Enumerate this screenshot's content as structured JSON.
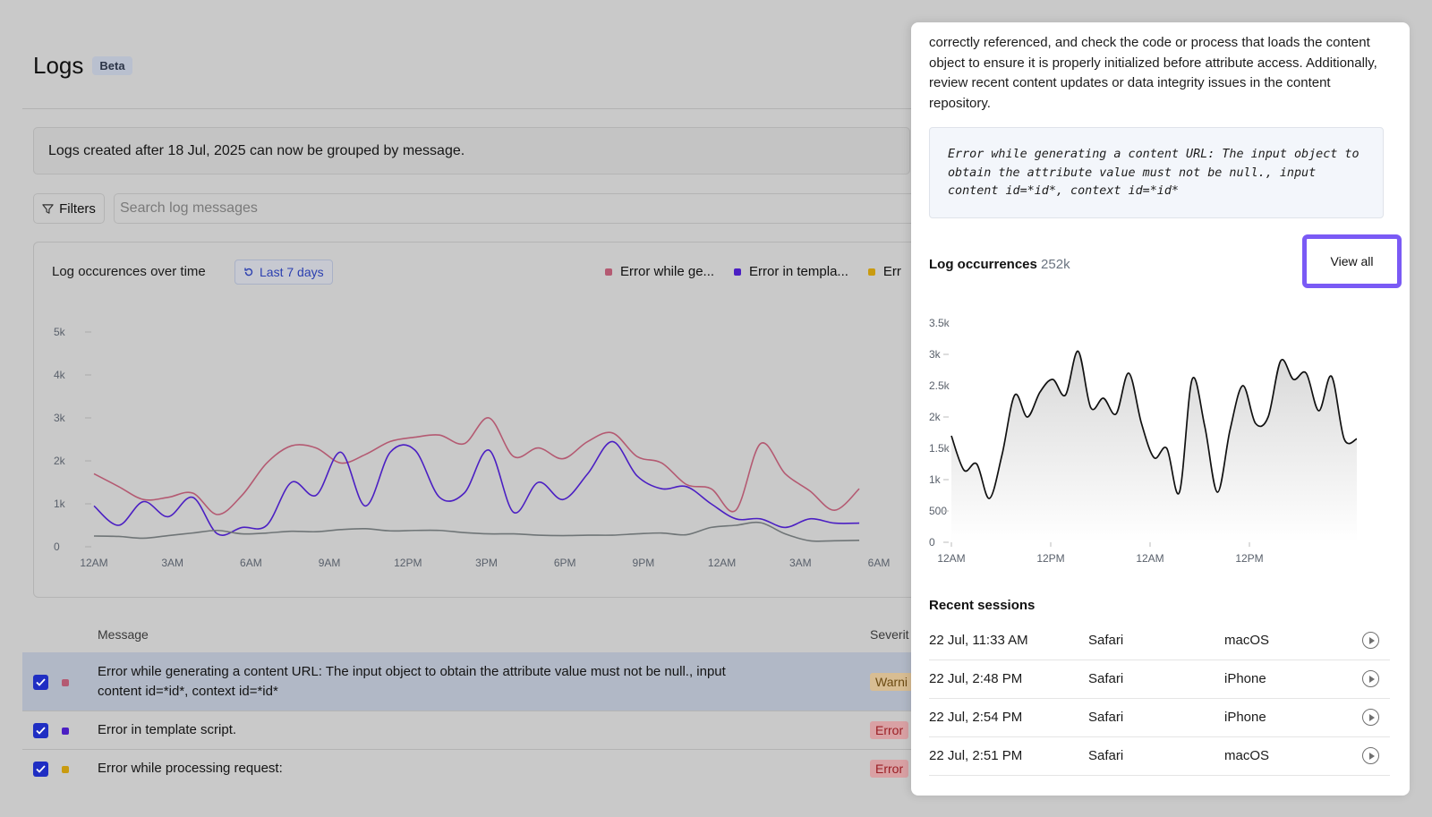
{
  "page": {
    "title": "Logs",
    "badge": "Beta",
    "notice": "Logs created after 18 Jul, 2025 can now be grouped by message."
  },
  "toolbar": {
    "filters_label": "Filters",
    "search_placeholder": "Search log messages"
  },
  "main_chart": {
    "title": "Log occurences over time",
    "range_label": "Last 7 days",
    "legend": [
      {
        "label": "Error while ge...",
        "color": "#b45a72"
      },
      {
        "label": "Error in templa...",
        "color": "#4b1fc3"
      },
      {
        "label": "Err",
        "color": "#c99b10"
      }
    ]
  },
  "table": {
    "header_message": "Message",
    "header_severity": "Severit",
    "rows": [
      {
        "message": "Error while generating a content URL: The input object to obtain the attribute value must not be null., input content id=*id*, context id=*id*",
        "severity": "Warni",
        "color": "#b45a72",
        "checked": true
      },
      {
        "message": "Error in template script.",
        "severity": "Error",
        "color": "#4b1fc3",
        "checked": true
      },
      {
        "message": "Error while processing request:",
        "severity": "Error",
        "color": "#c99b10",
        "checked": true
      }
    ]
  },
  "panel": {
    "description": "correctly referenced, and check the code or process that loads the content object to ensure it is properly initialized before attribute access. Additionally, review recent content updates or data integrity issues in the content repository.",
    "code": "Error while generating a content URL: The input object to obtain the attribute value must not be null., input content id=*id*, context id=*id*",
    "occurrences_title": "Log occurrences",
    "occurrences_count": "252k",
    "view_all_label": "View all",
    "sessions_title": "Recent sessions",
    "sessions": [
      {
        "time": "22 Jul, 11:33 AM",
        "browser": "Safari",
        "os": "macOS"
      },
      {
        "time": "22 Jul, 2:48 PM",
        "browser": "Safari",
        "os": "iPhone"
      },
      {
        "time": "22 Jul, 2:54 PM",
        "browser": "Safari",
        "os": "iPhone"
      },
      {
        "time": "22 Jul, 2:51 PM",
        "browser": "Safari",
        "os": "macOS"
      }
    ]
  },
  "chart_data": [
    {
      "type": "line",
      "title": "Log occurences over time",
      "y_ticks": [
        "0",
        "1k",
        "2k",
        "3k",
        "4k",
        "5k"
      ],
      "x_ticks": [
        "12AM",
        "3AM",
        "6AM",
        "9AM",
        "12PM",
        "3PM",
        "6PM",
        "9PM",
        "12AM",
        "3AM",
        "6AM"
      ],
      "ylim": [
        0,
        5000
      ],
      "series": [
        {
          "name": "Error while ge...",
          "color": "#b45a72",
          "values": [
            1700,
            1400,
            1100,
            1150,
            1250,
            750,
            1200,
            1950,
            2350,
            2300,
            1950,
            2150,
            2450,
            2550,
            2600,
            2400,
            3000,
            2100,
            2300,
            2050,
            2450,
            2650,
            2100,
            1950,
            1450,
            1350,
            850,
            2400,
            1700,
            1300,
            850,
            1350
          ]
        },
        {
          "name": "Error in templa...",
          "color": "#4b1fc3",
          "values": [
            950,
            500,
            1050,
            700,
            1150,
            300,
            450,
            500,
            1500,
            1200,
            2200,
            950,
            2200,
            2250,
            1150,
            1250,
            2250,
            800,
            1500,
            1100,
            1700,
            2450,
            1650,
            1350,
            1400,
            1000,
            650,
            650,
            450,
            650,
            550,
            550
          ]
        },
        {
          "name": "Err",
          "color": "#c99b10",
          "values": [
            250,
            240,
            200,
            260,
            320,
            380,
            300,
            320,
            360,
            350,
            400,
            420,
            370,
            380,
            380,
            330,
            300,
            300,
            270,
            260,
            270,
            270,
            300,
            320,
            280,
            450,
            500,
            560,
            300,
            140,
            140,
            150
          ]
        }
      ]
    },
    {
      "type": "area",
      "title": "Log occurrences",
      "y_ticks": [
        "0",
        "500",
        "1k",
        "1.5k",
        "2k",
        "2.5k",
        "3k",
        "3.5k"
      ],
      "x_ticks": [
        "12AM",
        "12PM",
        "12AM",
        "12PM"
      ],
      "ylim": [
        0,
        3500
      ],
      "values": [
        1700,
        1150,
        1250,
        700,
        1400,
        2350,
        2000,
        2400,
        2600,
        2350,
        3050,
        2150,
        2300,
        2050,
        2700,
        1900,
        1350,
        1500,
        800,
        2600,
        1850,
        800,
        1800,
        2500,
        1900,
        2000,
        2900,
        2600,
        2700,
        2100,
        2650,
        1650,
        1650
      ]
    }
  ]
}
